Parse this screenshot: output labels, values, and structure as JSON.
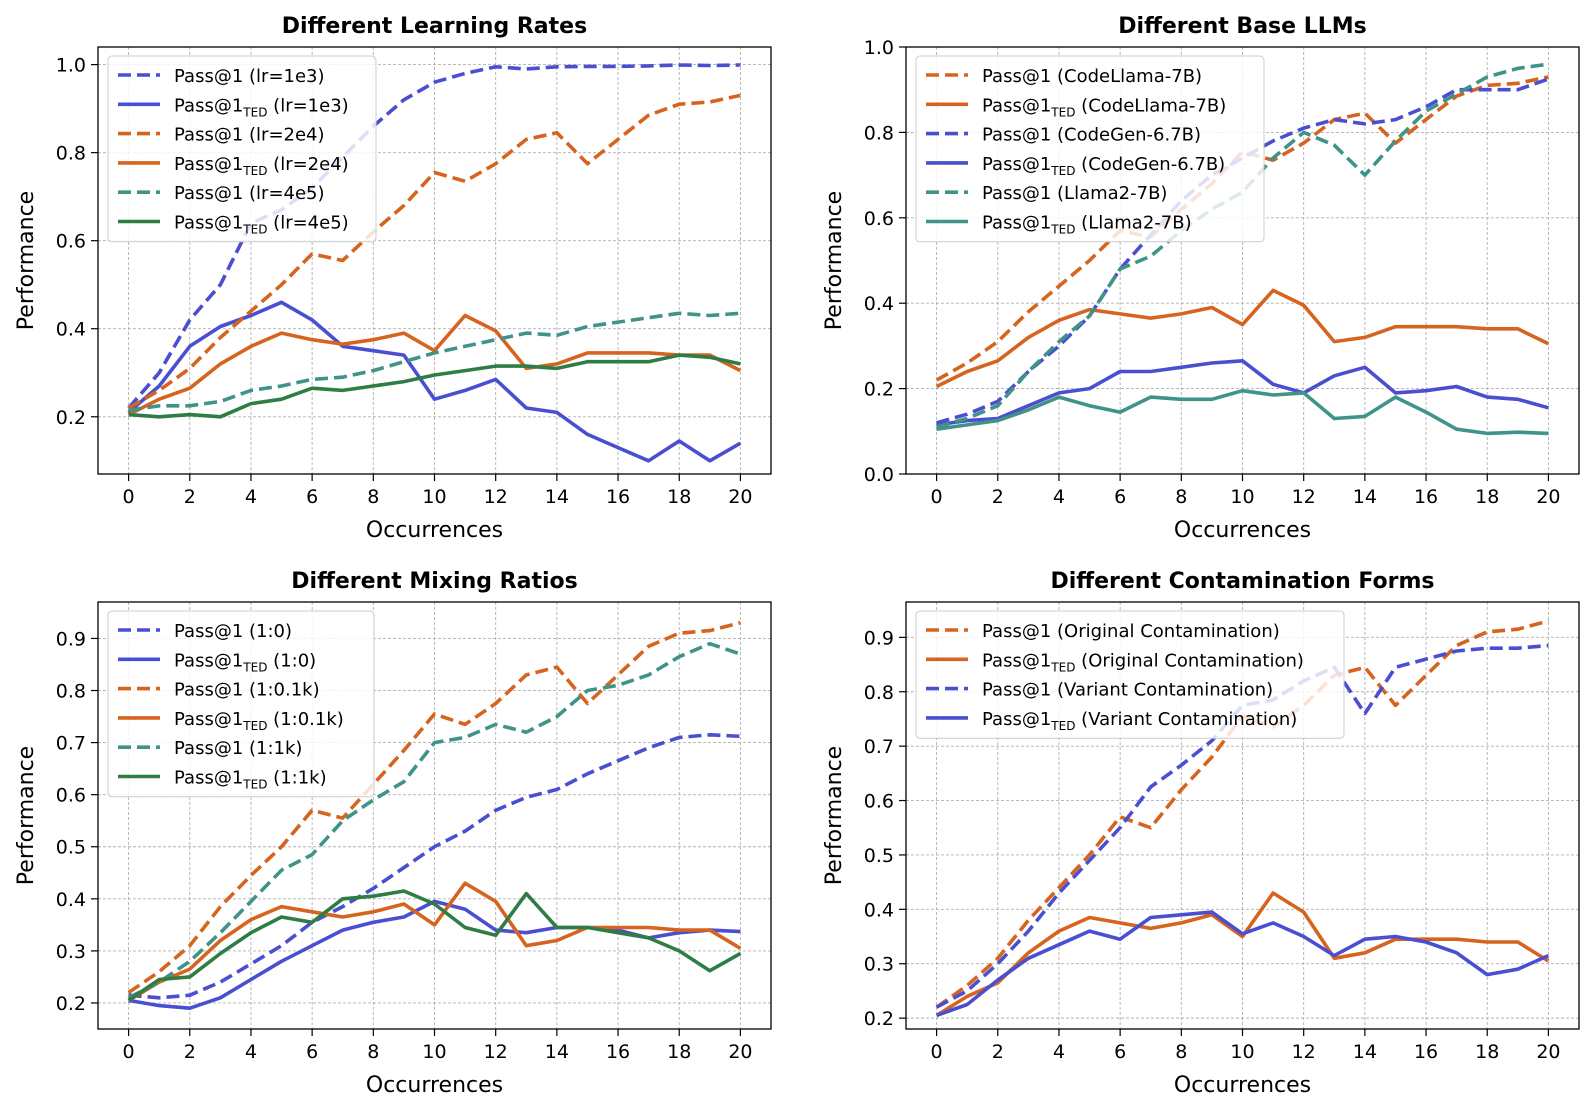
{
  "chart_data": [
    {
      "type": "line",
      "title": "Different Learning Rates",
      "xlabel": "Occurrences",
      "ylabel": "Performance",
      "xlim": [
        -1,
        21
      ],
      "ylim": [
        0.07,
        1.04
      ],
      "xticks": [
        0,
        2,
        4,
        6,
        8,
        10,
        12,
        14,
        16,
        18,
        20
      ],
      "yticks": [
        0.2,
        0.4,
        0.6,
        0.8,
        1.0
      ],
      "ytick_labels": [
        "0.2",
        "0.4",
        "0.6",
        "0.8",
        "1.0"
      ],
      "grid": true,
      "legend_position": "upper-left",
      "x": [
        0,
        1,
        2,
        3,
        4,
        5,
        6,
        7,
        8,
        9,
        10,
        11,
        12,
        13,
        14,
        15,
        16,
        17,
        18,
        19,
        20
      ],
      "series": [
        {
          "name": "Pass@1 (lr=1e3)",
          "label_main": "Pass@1",
          "label_sub": "",
          "label_rest": " (lr=1e3)",
          "color": "#4a4fd1",
          "dashed": true,
          "values": [
            0.22,
            0.3,
            0.42,
            0.5,
            0.64,
            0.67,
            0.72,
            0.79,
            0.86,
            0.92,
            0.96,
            0.98,
            0.995,
            0.99,
            0.995,
            0.996,
            0.996,
            0.997,
            0.999,
            0.998,
            0.999
          ]
        },
        {
          "name": "Pass@1TED (lr=1e3)",
          "label_main": "Pass@1",
          "label_sub": "TED",
          "label_rest": " (lr=1e3)",
          "color": "#4a4fd1",
          "dashed": false,
          "values": [
            0.21,
            0.27,
            0.36,
            0.405,
            0.43,
            0.46,
            0.42,
            0.36,
            0.35,
            0.34,
            0.24,
            0.26,
            0.285,
            0.22,
            0.21,
            0.16,
            0.13,
            0.1,
            0.145,
            0.1,
            0.14
          ]
        },
        {
          "name": "Pass@1 (lr=2e4)",
          "label_main": "Pass@1",
          "label_sub": "",
          "label_rest": " (lr=2e4)",
          "color": "#d6641f",
          "dashed": true,
          "values": [
            0.22,
            0.26,
            0.31,
            0.38,
            0.44,
            0.5,
            0.57,
            0.555,
            0.62,
            0.68,
            0.755,
            0.735,
            0.775,
            0.83,
            0.845,
            0.775,
            0.83,
            0.885,
            0.91,
            0.915,
            0.93
          ]
        },
        {
          "name": "Pass@1TED (lr=2e4)",
          "label_main": "Pass@1",
          "label_sub": "TED",
          "label_rest": " (lr=2e4)",
          "color": "#d6641f",
          "dashed": false,
          "values": [
            0.205,
            0.24,
            0.265,
            0.32,
            0.36,
            0.39,
            0.375,
            0.365,
            0.375,
            0.39,
            0.35,
            0.43,
            0.395,
            0.31,
            0.32,
            0.345,
            0.345,
            0.345,
            0.34,
            0.34,
            0.305
          ]
        },
        {
          "name": "Pass@1 (lr=4e5)",
          "label_main": "Pass@1",
          "label_sub": "",
          "label_rest": " (lr=4e5)",
          "color": "#3f9388",
          "dashed": true,
          "values": [
            0.215,
            0.225,
            0.225,
            0.235,
            0.26,
            0.27,
            0.285,
            0.29,
            0.305,
            0.325,
            0.345,
            0.36,
            0.375,
            0.39,
            0.385,
            0.405,
            0.415,
            0.425,
            0.435,
            0.43,
            0.435
          ]
        },
        {
          "name": "Pass@1TED (lr=4e5)",
          "label_main": "Pass@1",
          "label_sub": "TED",
          "label_rest": " (lr=4e5)",
          "color": "#2e7d45",
          "dashed": false,
          "values": [
            0.205,
            0.2,
            0.205,
            0.2,
            0.23,
            0.24,
            0.265,
            0.26,
            0.27,
            0.28,
            0.295,
            0.305,
            0.315,
            0.315,
            0.31,
            0.325,
            0.325,
            0.325,
            0.34,
            0.335,
            0.32
          ]
        }
      ]
    },
    {
      "type": "line",
      "title": "Different Base LLMs",
      "xlabel": "Occurrences",
      "ylabel": "Performance",
      "xlim": [
        -1,
        21
      ],
      "ylim": [
        0.0,
        1.0
      ],
      "xticks": [
        0,
        2,
        4,
        6,
        8,
        10,
        12,
        14,
        16,
        18,
        20
      ],
      "yticks": [
        0.0,
        0.2,
        0.4,
        0.6,
        0.8,
        1.0
      ],
      "ytick_labels": [
        "0.0",
        "0.2",
        "0.4",
        "0.6",
        "0.8",
        "1.0"
      ],
      "grid": true,
      "legend_position": "upper-left",
      "x": [
        0,
        1,
        2,
        3,
        4,
        5,
        6,
        7,
        8,
        9,
        10,
        11,
        12,
        13,
        14,
        15,
        16,
        17,
        18,
        19,
        20
      ],
      "series": [
        {
          "name": "Pass@1 (CodeLlama-7B)",
          "label_main": "Pass@1",
          "label_sub": "",
          "label_rest": " (CodeLlama-7B)",
          "color": "#d6641f",
          "dashed": true,
          "values": [
            0.22,
            0.26,
            0.31,
            0.38,
            0.44,
            0.5,
            0.57,
            0.555,
            0.62,
            0.68,
            0.755,
            0.735,
            0.775,
            0.83,
            0.845,
            0.775,
            0.83,
            0.885,
            0.91,
            0.915,
            0.93
          ]
        },
        {
          "name": "Pass@1TED (CodeLlama-7B)",
          "label_main": "Pass@1",
          "label_sub": "TED",
          "label_rest": " (CodeLlama-7B)",
          "color": "#d6641f",
          "dashed": false,
          "values": [
            0.205,
            0.24,
            0.265,
            0.32,
            0.36,
            0.385,
            0.375,
            0.365,
            0.375,
            0.39,
            0.35,
            0.43,
            0.395,
            0.31,
            0.32,
            0.345,
            0.345,
            0.345,
            0.34,
            0.34,
            0.305
          ]
        },
        {
          "name": "Pass@1 (CodeGen-6.7B)",
          "label_main": "Pass@1",
          "label_sub": "",
          "label_rest": " (CodeGen-6.7B)",
          "color": "#4a4fd1",
          "dashed": true,
          "values": [
            0.12,
            0.14,
            0.17,
            0.24,
            0.3,
            0.37,
            0.48,
            0.56,
            0.64,
            0.7,
            0.74,
            0.78,
            0.81,
            0.83,
            0.82,
            0.83,
            0.86,
            0.9,
            0.9,
            0.9,
            0.925
          ]
        },
        {
          "name": "Pass@1TED (CodeGen-6.7B)",
          "label_main": "Pass@1",
          "label_sub": "TED",
          "label_rest": " (CodeGen-6.7B)",
          "color": "#4a4fd1",
          "dashed": false,
          "values": [
            0.115,
            0.125,
            0.13,
            0.16,
            0.19,
            0.2,
            0.24,
            0.24,
            0.25,
            0.26,
            0.265,
            0.21,
            0.19,
            0.23,
            0.25,
            0.19,
            0.195,
            0.205,
            0.18,
            0.175,
            0.155
          ]
        },
        {
          "name": "Pass@1 (Llama2-7B)",
          "label_main": "Pass@1",
          "label_sub": "",
          "label_rest": " (Llama2-7B)",
          "color": "#3f9388",
          "dashed": true,
          "values": [
            0.11,
            0.13,
            0.16,
            0.24,
            0.31,
            0.37,
            0.48,
            0.51,
            0.57,
            0.62,
            0.66,
            0.74,
            0.8,
            0.77,
            0.7,
            0.78,
            0.85,
            0.89,
            0.93,
            0.95,
            0.96
          ]
        },
        {
          "name": "Pass@1TED (Llama2-7B)",
          "label_main": "Pass@1",
          "label_sub": "TED",
          "label_rest": " (Llama2-7B)",
          "color": "#3f9388",
          "dashed": false,
          "values": [
            0.105,
            0.115,
            0.125,
            0.15,
            0.18,
            0.16,
            0.145,
            0.18,
            0.175,
            0.175,
            0.195,
            0.185,
            0.19,
            0.13,
            0.135,
            0.18,
            0.145,
            0.105,
            0.095,
            0.098,
            0.095
          ]
        }
      ]
    },
    {
      "type": "line",
      "title": "Different Mixing Ratios",
      "xlabel": "Occurrences",
      "ylabel": "Performance",
      "xlim": [
        -1,
        21
      ],
      "ylim": [
        0.15,
        0.97
      ],
      "xticks": [
        0,
        2,
        4,
        6,
        8,
        10,
        12,
        14,
        16,
        18,
        20
      ],
      "yticks": [
        0.2,
        0.3,
        0.4,
        0.5,
        0.6,
        0.7,
        0.8,
        0.9
      ],
      "ytick_labels": [
        "0.2",
        "0.3",
        "0.4",
        "0.5",
        "0.6",
        "0.7",
        "0.8",
        "0.9"
      ],
      "grid": true,
      "legend_position": "upper-left",
      "x": [
        0,
        1,
        2,
        3,
        4,
        5,
        6,
        7,
        8,
        9,
        10,
        11,
        12,
        13,
        14,
        15,
        16,
        17,
        18,
        19,
        20
      ],
      "series": [
        {
          "name": "Pass@1 (1:0)",
          "label_main": "Pass@1",
          "label_sub": "",
          "label_rest": " (1:0)",
          "color": "#4a4fd1",
          "dashed": true,
          "values": [
            0.215,
            0.21,
            0.215,
            0.24,
            0.275,
            0.31,
            0.355,
            0.385,
            0.42,
            0.46,
            0.5,
            0.53,
            0.57,
            0.595,
            0.61,
            0.64,
            0.665,
            0.69,
            0.71,
            0.715,
            0.712
          ]
        },
        {
          "name": "Pass@1TED (1:0)",
          "label_main": "Pass@1",
          "label_sub": "TED",
          "label_rest": " (1:0)",
          "color": "#4a4fd1",
          "dashed": false,
          "values": [
            0.205,
            0.195,
            0.19,
            0.21,
            0.245,
            0.28,
            0.31,
            0.34,
            0.355,
            0.365,
            0.395,
            0.38,
            0.34,
            0.335,
            0.345,
            0.345,
            0.34,
            0.325,
            0.335,
            0.34,
            0.337
          ]
        },
        {
          "name": "Pass@1 (1:0.1k)",
          "label_main": "Pass@1",
          "label_sub": "",
          "label_rest": " (1:0.1k)",
          "color": "#d6641f",
          "dashed": true,
          "values": [
            0.22,
            0.26,
            0.31,
            0.385,
            0.445,
            0.5,
            0.57,
            0.555,
            0.62,
            0.685,
            0.755,
            0.735,
            0.775,
            0.83,
            0.845,
            0.775,
            0.83,
            0.885,
            0.91,
            0.915,
            0.93
          ]
        },
        {
          "name": "Pass@1TED (1:0.1k)",
          "label_main": "Pass@1",
          "label_sub": "TED",
          "label_rest": " (1:0.1k)",
          "color": "#d6641f",
          "dashed": false,
          "values": [
            0.205,
            0.24,
            0.265,
            0.32,
            0.36,
            0.385,
            0.375,
            0.365,
            0.375,
            0.39,
            0.35,
            0.43,
            0.395,
            0.31,
            0.32,
            0.345,
            0.345,
            0.345,
            0.34,
            0.34,
            0.305
          ]
        },
        {
          "name": "Pass@1 (1:1k)",
          "label_main": "Pass@1",
          "label_sub": "",
          "label_rest": " (1:1k)",
          "color": "#3f9388",
          "dashed": true,
          "values": [
            0.21,
            0.24,
            0.28,
            0.335,
            0.395,
            0.455,
            0.485,
            0.55,
            0.59,
            0.625,
            0.7,
            0.71,
            0.735,
            0.72,
            0.75,
            0.8,
            0.81,
            0.83,
            0.865,
            0.89,
            0.87
          ]
        },
        {
          "name": "Pass@1TED (1:1k)",
          "label_main": "Pass@1",
          "label_sub": "TED",
          "label_rest": " (1:1k)",
          "color": "#2e7d45",
          "dashed": false,
          "values": [
            0.205,
            0.245,
            0.25,
            0.295,
            0.335,
            0.365,
            0.355,
            0.4,
            0.405,
            0.415,
            0.39,
            0.345,
            0.33,
            0.41,
            0.345,
            0.345,
            0.335,
            0.325,
            0.3,
            0.262,
            0.295
          ]
        }
      ]
    },
    {
      "type": "line",
      "title": "Different Contamination Forms",
      "xlabel": "Occurrences",
      "ylabel": "Performance",
      "xlim": [
        -1,
        21
      ],
      "ylim": [
        0.18,
        0.965
      ],
      "xticks": [
        0,
        2,
        4,
        6,
        8,
        10,
        12,
        14,
        16,
        18,
        20
      ],
      "yticks": [
        0.2,
        0.3,
        0.4,
        0.5,
        0.6,
        0.7,
        0.8,
        0.9
      ],
      "ytick_labels": [
        "0.2",
        "0.3",
        "0.4",
        "0.5",
        "0.6",
        "0.7",
        "0.8",
        "0.9"
      ],
      "grid": true,
      "legend_position": "upper-left",
      "x": [
        0,
        1,
        2,
        3,
        4,
        5,
        6,
        7,
        8,
        9,
        10,
        11,
        12,
        13,
        14,
        15,
        16,
        17,
        18,
        19,
        20
      ],
      "series": [
        {
          "name": "Pass@1 (Original Contamination)",
          "label_main": "Pass@1",
          "label_sub": "",
          "label_rest": " (Original Contamination)",
          "color": "#d6641f",
          "dashed": true,
          "values": [
            0.22,
            0.26,
            0.31,
            0.38,
            0.44,
            0.5,
            0.57,
            0.55,
            0.62,
            0.68,
            0.755,
            0.735,
            0.775,
            0.83,
            0.845,
            0.775,
            0.83,
            0.885,
            0.91,
            0.915,
            0.93
          ]
        },
        {
          "name": "Pass@1TED (Original Contamination)",
          "label_main": "Pass@1",
          "label_sub": "TED",
          "label_rest": " (Original Contamination)",
          "color": "#d6641f",
          "dashed": false,
          "values": [
            0.205,
            0.24,
            0.265,
            0.32,
            0.36,
            0.385,
            0.375,
            0.365,
            0.375,
            0.39,
            0.35,
            0.43,
            0.395,
            0.31,
            0.32,
            0.345,
            0.345,
            0.345,
            0.34,
            0.34,
            0.305
          ]
        },
        {
          "name": "Pass@1 (Variant Contamination)",
          "label_main": "Pass@1",
          "label_sub": "",
          "label_rest": " (Variant Contamination)",
          "color": "#4a4fd1",
          "dashed": true,
          "values": [
            0.22,
            0.25,
            0.3,
            0.36,
            0.43,
            0.49,
            0.55,
            0.625,
            0.665,
            0.71,
            0.775,
            0.785,
            0.82,
            0.845,
            0.76,
            0.845,
            0.86,
            0.875,
            0.88,
            0.88,
            0.885
          ]
        },
        {
          "name": "Pass@1TED (Variant Contamination)",
          "label_main": "Pass@1",
          "label_sub": "TED",
          "label_rest": " (Variant Contamination)",
          "color": "#4a4fd1",
          "dashed": false,
          "values": [
            0.205,
            0.225,
            0.27,
            0.31,
            0.335,
            0.36,
            0.345,
            0.385,
            0.39,
            0.395,
            0.355,
            0.375,
            0.35,
            0.315,
            0.345,
            0.35,
            0.34,
            0.32,
            0.28,
            0.29,
            0.315
          ]
        }
      ]
    }
  ]
}
